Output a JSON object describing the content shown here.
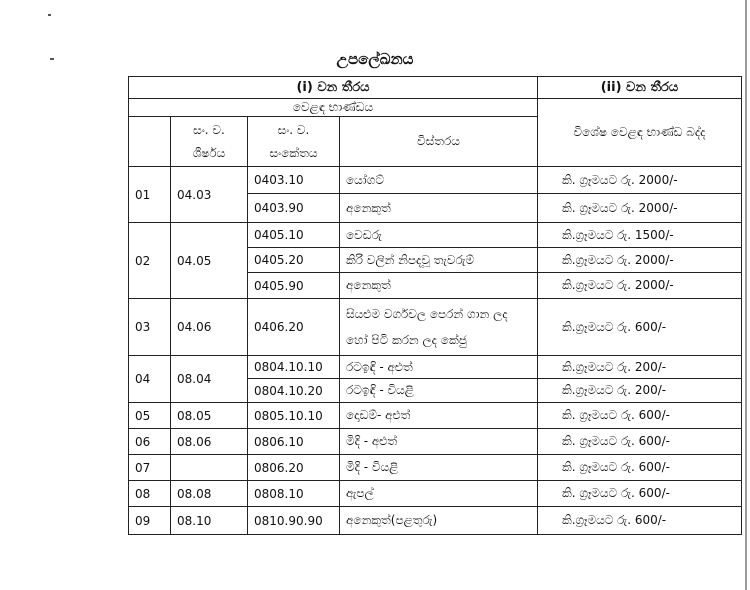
{
  "title": "උපලේඛනය",
  "header": {
    "col_i": "(i) වන තීරය",
    "col_ii": "(ii) වන තීරය",
    "commodity": "වෙළඳ භාණ්ඩය",
    "hs_heading_1": "සං. ව.",
    "hs_heading_2": "ශීර්ෂය",
    "hs_code_1": "සං. ව.",
    "hs_code_2": "සංකේතය",
    "description": "විස්තරය",
    "levy": "විශේෂ වෙළඳ භාණ්ඩ බද්ද"
  },
  "groups": [
    {
      "no": "01",
      "heading": "04.03",
      "items": [
        {
          "code": "0403.10",
          "desc": "යෝගට්",
          "levy": "කි. ග්‍රෑමයට රු. 2000/-"
        },
        {
          "code": "0403.90",
          "desc": "අනෙකුත්",
          "levy": "කි. ග්‍රෑමයට රු. 2000/-"
        }
      ]
    },
    {
      "no": "02",
      "heading": "04.05",
      "items": [
        {
          "code": "0405.10",
          "desc": "වෙඩරු",
          "levy": "කි.ග්‍රෑමයට රු. 1500/-"
        },
        {
          "code": "0405.20",
          "desc": "කිරි වලින් නිපදවූ තැවරුම්",
          "levy": "කි.ග්‍රෑමයට රු. 2000/-"
        },
        {
          "code": "0405.90",
          "desc": "අනෙකුත්",
          "levy": "කි.ග්‍රෑමයට රු. 2000/-"
        }
      ]
    },
    {
      "no": "03",
      "heading": "04.06",
      "items": [
        {
          "code": "0406.20",
          "desc": "සියළුම වර්ගවල පෙරන් ගාන ලද හෝ පිටි කරන ලද කේජු",
          "levy": "කි.ග්‍රෑමයට රු. 600/-"
        }
      ]
    },
    {
      "no": "04",
      "heading": "08.04",
      "items": [
        {
          "code": "0804.10.10",
          "desc": "රටඉඳි - අළුත්",
          "levy": "කි.ග්‍රෑමයට රු. 200/-"
        },
        {
          "code": "0804.10.20",
          "desc": "රටඉඳි - වියළි",
          "levy": "කි.ග්‍රෑමයට රු. 200/-"
        }
      ]
    },
    {
      "no": "05",
      "heading": "08.05",
      "items": [
        {
          "code": "0805.10.10",
          "desc": "දොඩම්- අළුත්",
          "levy": "කි. ග්‍රෑමයට රු. 600/-"
        }
      ]
    },
    {
      "no": "06",
      "heading": "08.06",
      "items": [
        {
          "code": "0806.10",
          "desc": "මිදි - අළුත්",
          "levy": "කි. ග්‍රෑමයට රු. 600/-"
        }
      ]
    },
    {
      "no": "07",
      "heading": "",
      "items": [
        {
          "code": "0806.20",
          "desc": "මිදි - වියළි",
          "levy": "කි. ග්‍රෑමයට රු. 600/-"
        }
      ]
    },
    {
      "no": "08",
      "heading": "08.08",
      "items": [
        {
          "code": "0808.10",
          "desc": "ඇපල්",
          "levy": "කි. ග්‍රෑමයට රු. 600/-"
        }
      ]
    },
    {
      "no": "09",
      "heading": "08.10",
      "items": [
        {
          "code": "0810.90.90",
          "desc": "අනෙකුත්(පළතුරු)",
          "levy": "කි.ග්‍රෑමයට රු. 600/-"
        }
      ]
    }
  ]
}
